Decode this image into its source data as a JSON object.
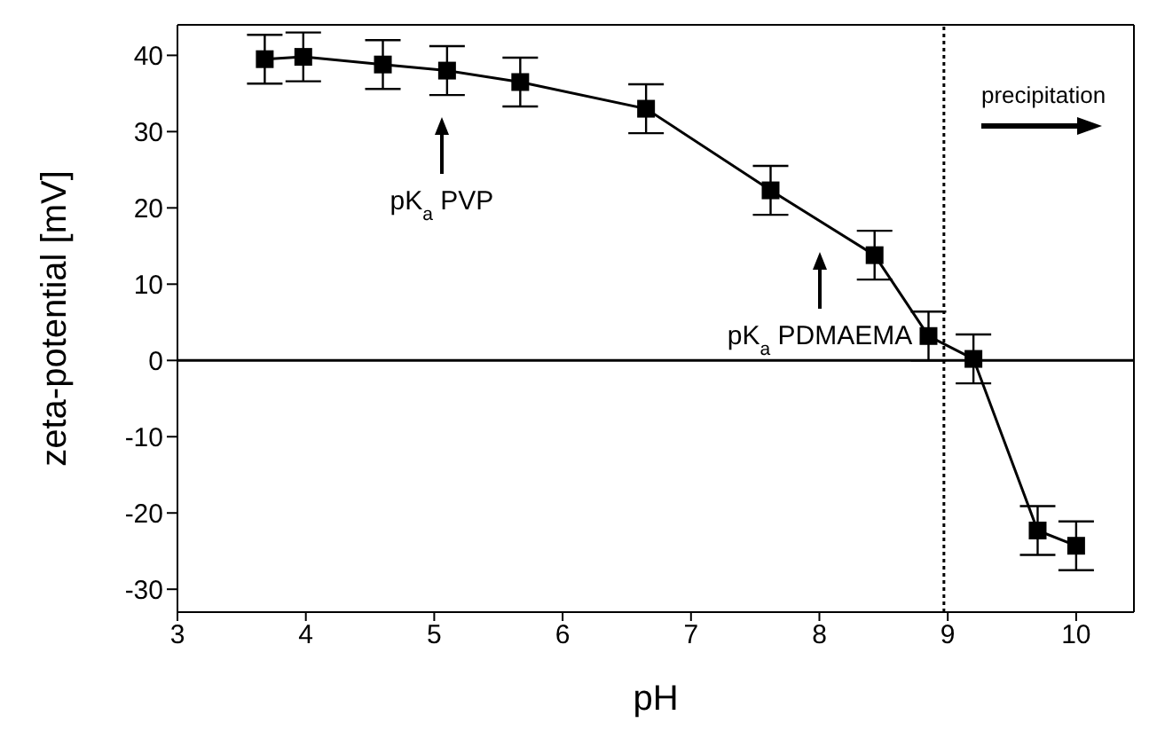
{
  "chart_data": {
    "type": "line",
    "xlabel": "pH",
    "ylabel": "zeta-potential [mV]",
    "x": [
      3.68,
      3.98,
      4.6,
      5.1,
      5.67,
      6.65,
      7.62,
      8.43,
      8.85,
      9.2,
      9.7,
      10.0
    ],
    "series": [
      {
        "color": "#000000",
        "values": [
          39.5,
          39.8,
          38.8,
          38.0,
          36.5,
          33.0,
          22.3,
          13.8,
          3.2,
          0.2,
          -22.3,
          -24.3
        ],
        "errors": [
          3.2,
          3.2,
          3.2,
          3.2,
          3.2,
          3.2,
          3.2,
          3.2,
          3.2,
          3.2,
          3.2,
          3.2
        ]
      }
    ],
    "marker": "square",
    "line_style": "solid",
    "xlim": [
      3,
      10.45
    ],
    "xticks": [
      3,
      4,
      5,
      6,
      7,
      8,
      9,
      10
    ],
    "ylim": [
      -33,
      44
    ],
    "yticks": [
      -30,
      -20,
      -10,
      0,
      10,
      20,
      30,
      40
    ],
    "ref_lines": [
      {
        "axis": "y",
        "value": 0,
        "line_style": "solid"
      },
      {
        "axis": "x",
        "value": 8.97,
        "line_style": "dotted"
      }
    ],
    "annotations": [
      "pK$_{a}$ PVP",
      "pK$_{a}$ PDMAEMA",
      "precipitation"
    ],
    "grid": false,
    "legend": false
  }
}
